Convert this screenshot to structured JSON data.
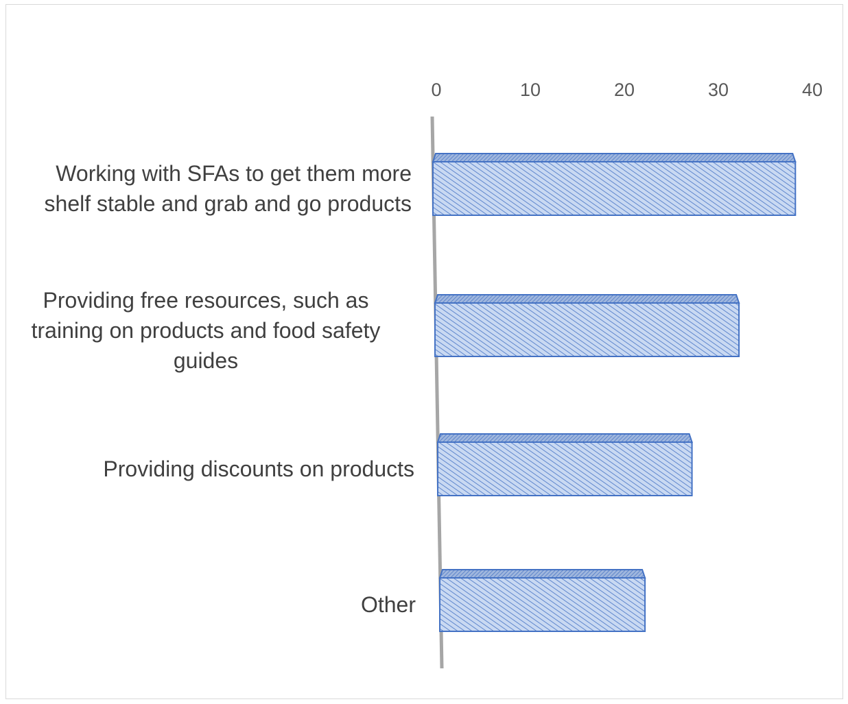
{
  "chart_data": {
    "type": "bar",
    "orientation": "horizontal",
    "categories": [
      "Working with SFAs to get them more shelf stable and grab and go products",
      "Providing free resources, such as training on products and food safety guides",
      "Providing discounts on products",
      "Other"
    ],
    "values": [
      39,
      33,
      28,
      23
    ],
    "xlim": [
      0,
      40
    ],
    "xticks": [
      "0",
      "10",
      "20",
      "30",
      "40"
    ],
    "x_axis_position": "top",
    "title": "",
    "xlabel": "",
    "ylabel": "",
    "grid": false,
    "legend": "none",
    "colors": {
      "bar_fill": "#c9d9f2",
      "bar_hatch": "#4472c4",
      "bar_edge": "#4472c4",
      "axis": "#a6a6a6",
      "text": "#404040"
    }
  }
}
